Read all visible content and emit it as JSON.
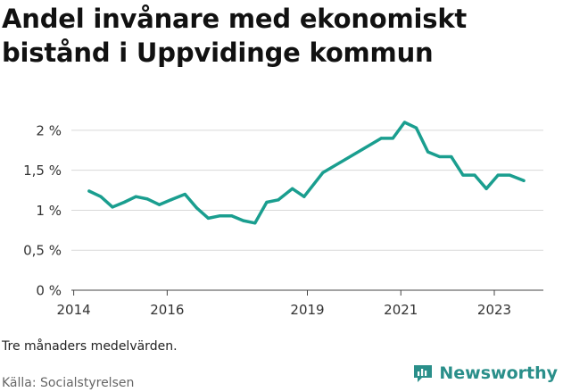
{
  "title": "Andel invånare med ekonomiskt bistånd i Uppvidinge kommun",
  "note": "Tre månaders medelvärden.",
  "source": "Källa: Socialstyrelsen",
  "brand": {
    "name": "Newsworthy",
    "color": "#2a8f8a"
  },
  "chart_data": {
    "type": "line",
    "color": "#1a9e8f",
    "ylim": [
      0,
      2.2
    ],
    "xlim": [
      2013.95,
      2024.05
    ],
    "y_ticks": [
      {
        "value": 0,
        "label": "0 %"
      },
      {
        "value": 0.5,
        "label": "0,5 %"
      },
      {
        "value": 1,
        "label": "1 %"
      },
      {
        "value": 1.5,
        "label": "1,5 %"
      },
      {
        "value": 2,
        "label": "2 %"
      }
    ],
    "x_ticks": [
      {
        "value": 2014,
        "label": "2014"
      },
      {
        "value": 2016,
        "label": "2016"
      },
      {
        "value": 2019,
        "label": "2019"
      },
      {
        "value": 2021,
        "label": "2021"
      },
      {
        "value": 2023,
        "label": "2023"
      }
    ],
    "grid": "horizontal",
    "x": [
      2014.33,
      2014.58,
      2014.83,
      2015.08,
      2015.33,
      2015.58,
      2015.83,
      2016.08,
      2016.38,
      2016.63,
      2016.88,
      2017.13,
      2017.38,
      2017.63,
      2017.88,
      2018.13,
      2018.38,
      2018.68,
      2018.93,
      2019.33,
      2020.58,
      2020.83,
      2021.08,
      2021.33,
      2021.58,
      2021.83,
      2022.08,
      2022.33,
      2022.58,
      2022.83,
      2023.08,
      2023.33,
      2023.63
    ],
    "y": [
      1.24,
      1.17,
      1.04,
      1.1,
      1.17,
      1.14,
      1.07,
      1.13,
      1.2,
      1.03,
      0.9,
      0.93,
      0.93,
      0.87,
      0.84,
      1.1,
      1.13,
      1.27,
      1.17,
      1.47,
      1.9,
      1.9,
      2.1,
      2.03,
      1.73,
      1.67,
      1.67,
      1.44,
      1.44,
      1.27,
      1.44,
      1.44,
      1.37
    ]
  }
}
